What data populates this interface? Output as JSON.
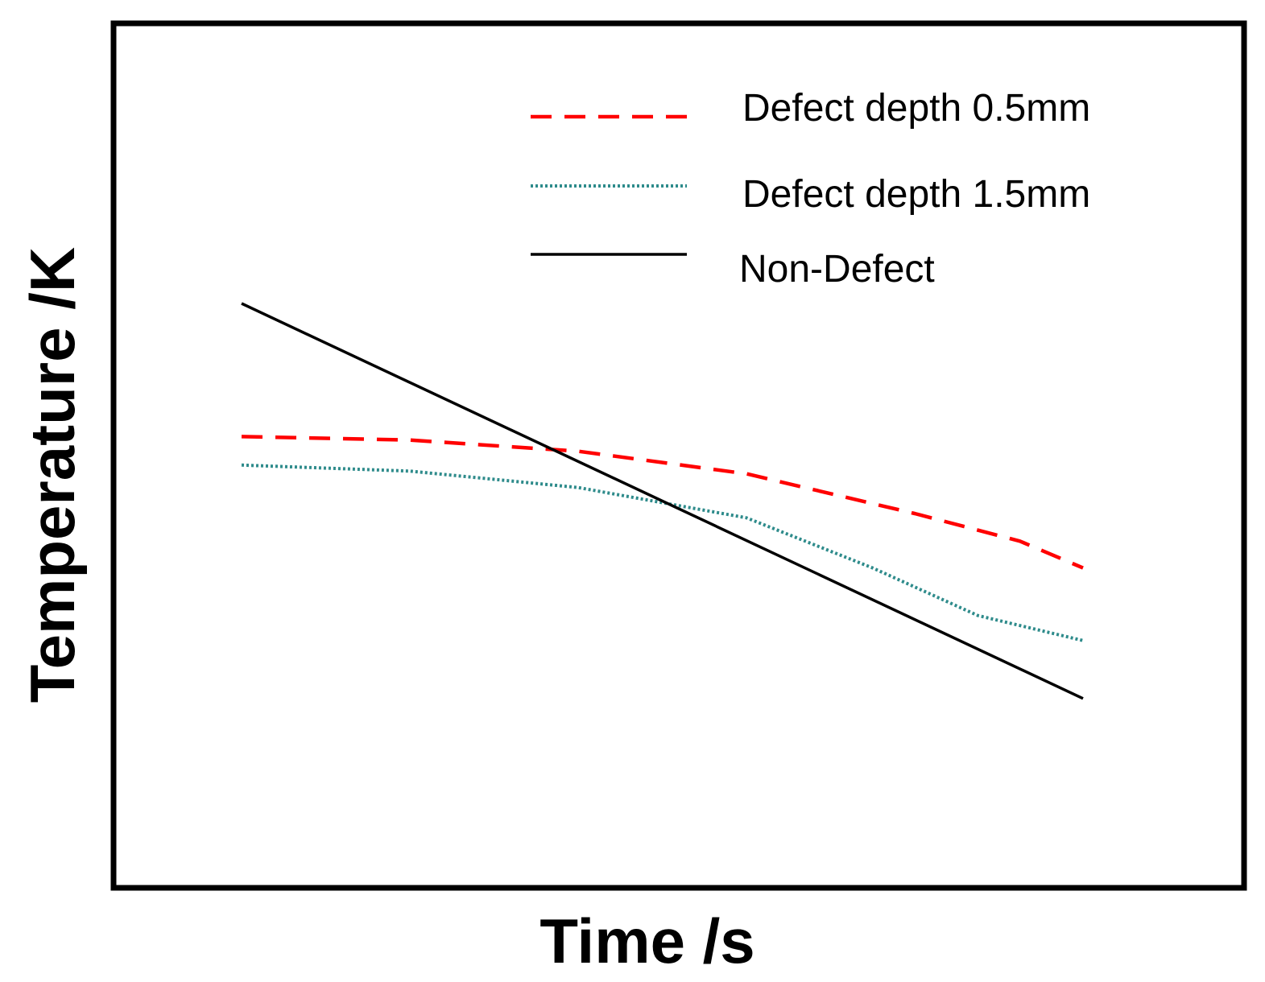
{
  "chart_data": {
    "type": "line",
    "title": "",
    "xlabel": "Time /s",
    "ylabel": "Temperature /K",
    "grid": false,
    "ticks": false,
    "legend_position": "top-right",
    "xlim": [
      0,
      100
    ],
    "ylim": [
      0,
      100
    ],
    "series": [
      {
        "name": "Defect depth 0.5mm",
        "color": "#ff0000",
        "style": "dashed",
        "points": [
          [
            0.0,
            52.2
          ],
          [
            20.0,
            51.8
          ],
          [
            40.0,
            50.5
          ],
          [
            60.0,
            47.9
          ],
          [
            80.0,
            43.3
          ],
          [
            92.5,
            40.1
          ],
          [
            100.0,
            37.0
          ]
        ]
      },
      {
        "name": "Defect depth 1.5mm",
        "color": "#2e8b8b",
        "style": "dotted",
        "points": [
          [
            0.0,
            48.9
          ],
          [
            20.0,
            48.2
          ],
          [
            40.0,
            46.3
          ],
          [
            60.0,
            42.8
          ],
          [
            75.0,
            37.0
          ],
          [
            87.5,
            31.5
          ],
          [
            100.0,
            28.6
          ]
        ]
      },
      {
        "name": "Non-Defect",
        "color": "#000000",
        "style": "solid",
        "points": [
          [
            0.0,
            67.6
          ],
          [
            100.0,
            21.9
          ]
        ]
      }
    ]
  }
}
